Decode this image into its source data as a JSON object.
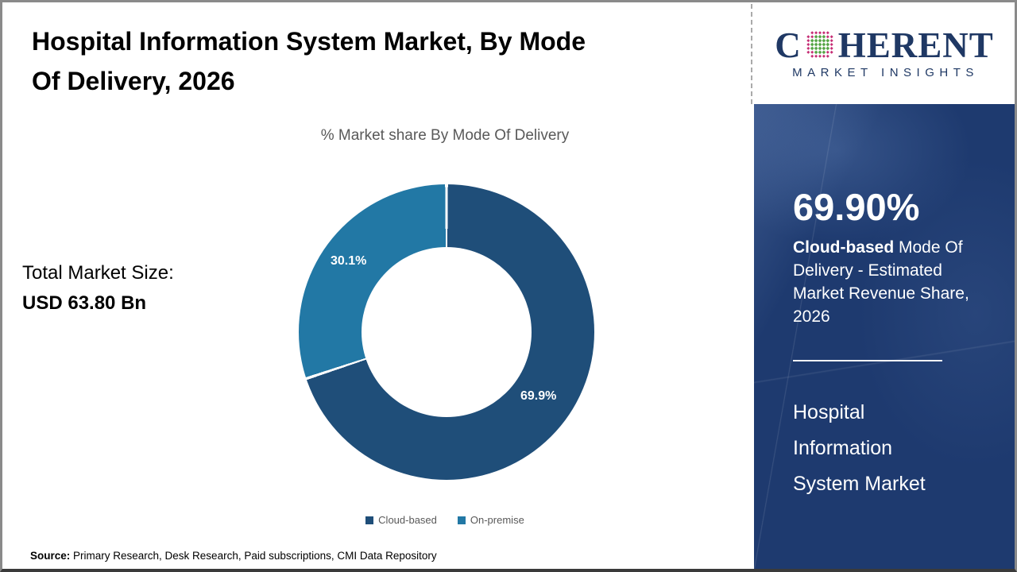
{
  "header": {
    "title_line1": "Hospital Information System Market, By Mode",
    "title_line2": "Of Delivery, 2026"
  },
  "logo": {
    "brand_start": "C",
    "brand_end": "HERENT",
    "tagline": "MARKET INSIGHTS",
    "brand_color": "#1f3864",
    "globe_green": "#55a546",
    "globe_magenta": "#c52d74"
  },
  "left_stat": {
    "label": "Total Market Size:",
    "value": "USD 63.80 Bn"
  },
  "chart_data": {
    "type": "pie",
    "donut": true,
    "title": "% Market share By Mode Of Delivery",
    "categories": [
      "Cloud-based",
      "On-premise"
    ],
    "values": [
      69.9,
      30.1
    ],
    "labels": [
      "69.9%",
      "30.1%"
    ],
    "colors": [
      "#1f4e79",
      "#2278a5"
    ],
    "start_angle_deg": 0,
    "direction": "clockwise",
    "legend_position": "bottom",
    "separator_color": "#ffffff"
  },
  "sidebar": {
    "stat_value": "69.90%",
    "description_bold": "Cloud-based",
    "description_rest": " Mode Of Delivery - Estimated Market Revenue Share, 2026",
    "market_title": "Hospital Information System Market",
    "background_color": "#1e3a6f"
  },
  "source": {
    "label": "Source:",
    "text": " Primary Research, Desk Research, Paid subscriptions, CMI Data Repository"
  }
}
